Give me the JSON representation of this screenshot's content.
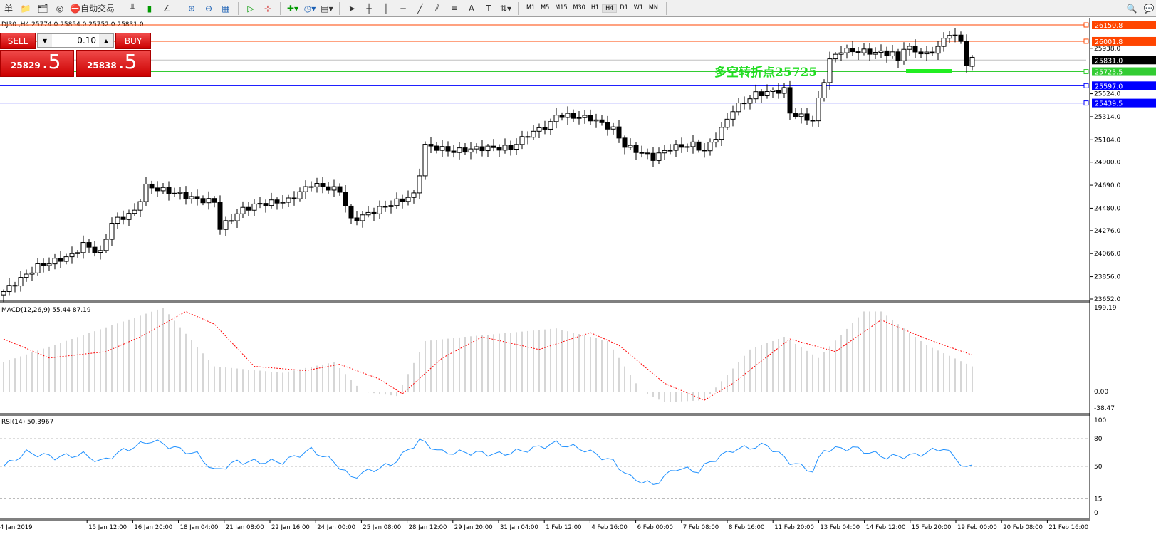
{
  "toolbar": {
    "auto_trade_label": "自动交易",
    "left_cut_label": "单",
    "timeframes": [
      "M1",
      "M5",
      "M15",
      "M30",
      "H1",
      "H4",
      "D1",
      "W1",
      "MN"
    ],
    "active_timeframe": "H4"
  },
  "chart_header": "DJ30 ,H4  25774.0 25854.0 25752.0 25831.0",
  "trade_panel": {
    "sell_label": "SELL",
    "buy_label": "BUY",
    "lot": "0.10",
    "sell_big": "25829",
    "sell_small": ".5",
    "buy_big": "25838",
    "buy_small": ".5",
    "color": "#d42020"
  },
  "annotation": {
    "text": "多空转折点25725",
    "color": "#22dd22"
  },
  "chart_data": [
    {
      "type": "candlestick",
      "symbol": "DJ30",
      "timeframe": "H4",
      "ylim": [
        23652.0,
        26150.8
      ],
      "price_ticks": [
        25938.0,
        25524.0,
        25314.0,
        25104.0,
        24900.0,
        24690.0,
        24480.0,
        24276.0,
        24066.0,
        23856.0,
        23652.0
      ],
      "last_ohlc": {
        "open": 25774.0,
        "high": 25854.0,
        "low": 25752.0,
        "close": 25831.0
      },
      "close_path_by_bar": [
        [
          0,
          23720
        ],
        [
          6,
          23950
        ],
        [
          12,
          24050
        ],
        [
          14,
          24150
        ],
        [
          17,
          24070
        ],
        [
          19,
          24350
        ],
        [
          23,
          24450
        ],
        [
          25,
          24680
        ],
        [
          30,
          24620
        ],
        [
          34,
          24560
        ],
        [
          37,
          24540
        ],
        [
          38,
          24300
        ],
        [
          42,
          24470
        ],
        [
          45,
          24520
        ],
        [
          50,
          24550
        ],
        [
          54,
          24700
        ],
        [
          59,
          24640
        ],
        [
          61,
          24370
        ],
        [
          64,
          24430
        ],
        [
          68,
          24520
        ],
        [
          72,
          24600
        ],
        [
          73,
          24800
        ],
        [
          74,
          25050
        ],
        [
          79,
          25000
        ],
        [
          84,
          25030
        ],
        [
          89,
          25030
        ],
        [
          92,
          25150
        ],
        [
          96,
          25250
        ],
        [
          97,
          25330
        ],
        [
          103,
          25300
        ],
        [
          107,
          25200
        ],
        [
          109,
          25050
        ],
        [
          114,
          24940
        ],
        [
          117,
          25030
        ],
        [
          121,
          25060
        ],
        [
          123,
          25000
        ],
        [
          126,
          25200
        ],
        [
          128,
          25380
        ],
        [
          132,
          25520
        ],
        [
          137,
          25560
        ],
        [
          138,
          25350
        ],
        [
          142,
          25280
        ],
        [
          144,
          25650
        ],
        [
          145,
          25830
        ],
        [
          147,
          25920
        ],
        [
          156,
          25890
        ],
        [
          157,
          25820
        ],
        [
          158,
          25950
        ],
        [
          162,
          25880
        ],
        [
          164,
          25950
        ],
        [
          166,
          26080
        ],
        [
          168,
          26000
        ],
        [
          169,
          25800
        ],
        [
          170,
          25831
        ]
      ],
      "levels": [
        {
          "price": "26150.8",
          "color": "#ff4500"
        },
        {
          "price": "26001.8",
          "color": "#ff4500"
        },
        {
          "price": "25831.0",
          "color": "#000000",
          "line": "#c0c0c0"
        },
        {
          "price": "25725.5",
          "color": "#33cc33"
        },
        {
          "price": "25597.0",
          "color": "#0000ff"
        },
        {
          "price": "25439.5",
          "color": "#0000ff"
        }
      ]
    },
    {
      "type": "bar+line",
      "title": "MACD(12,26,9) 55.44 87.19",
      "ylim": [
        -38.47,
        199.19
      ],
      "ticks": [
        "199.19",
        "0.00",
        "-38.47"
      ],
      "histogram_by_bar": [
        [
          0,
          70
        ],
        [
          24,
          180
        ],
        [
          28,
          199
        ],
        [
          37,
          60
        ],
        [
          49,
          45
        ],
        [
          58,
          70
        ],
        [
          63,
          0
        ],
        [
          69,
          -10
        ],
        [
          74,
          120
        ],
        [
          81,
          130
        ],
        [
          97,
          150
        ],
        [
          106,
          120
        ],
        [
          112,
          0
        ],
        [
          116,
          -25
        ],
        [
          123,
          -20
        ],
        [
          131,
          100
        ],
        [
          137,
          130
        ],
        [
          143,
          80
        ],
        [
          151,
          190
        ],
        [
          154,
          190
        ],
        [
          162,
          110
        ],
        [
          170,
          60
        ]
      ],
      "signal_by_bar": [
        [
          0,
          125
        ],
        [
          8,
          80
        ],
        [
          18,
          95
        ],
        [
          24,
          130
        ],
        [
          32,
          190
        ],
        [
          37,
          160
        ],
        [
          44,
          60
        ],
        [
          53,
          50
        ],
        [
          59,
          65
        ],
        [
          66,
          30
        ],
        [
          70,
          -5
        ],
        [
          77,
          80
        ],
        [
          84,
          130
        ],
        [
          94,
          100
        ],
        [
          103,
          140
        ],
        [
          108,
          110
        ],
        [
          116,
          20
        ],
        [
          123,
          -20
        ],
        [
          128,
          20
        ],
        [
          138,
          125
        ],
        [
          146,
          95
        ],
        [
          154,
          170
        ],
        [
          162,
          125
        ],
        [
          170,
          87
        ]
      ],
      "histogram_color": "#c0c0c0",
      "signal_color": "#ff0000"
    },
    {
      "type": "line",
      "title": "RSI(14) 50.3967",
      "ylim": [
        0,
        100
      ],
      "ticks": [
        "100",
        "80",
        "50",
        "15",
        "0"
      ],
      "levels": [
        80,
        50,
        15
      ],
      "color": "#1e90ff",
      "rsi_by_bar": [
        [
          0,
          50
        ],
        [
          4,
          65
        ],
        [
          9,
          60
        ],
        [
          14,
          63
        ],
        [
          17,
          55
        ],
        [
          21,
          67
        ],
        [
          26,
          78
        ],
        [
          31,
          68
        ],
        [
          34,
          63
        ],
        [
          37,
          45
        ],
        [
          41,
          55
        ],
        [
          44,
          55
        ],
        [
          49,
          55
        ],
        [
          54,
          68
        ],
        [
          58,
          55
        ],
        [
          61,
          38
        ],
        [
          64,
          45
        ],
        [
          68,
          52
        ],
        [
          73,
          78
        ],
        [
          77,
          65
        ],
        [
          82,
          65
        ],
        [
          87,
          63
        ],
        [
          92,
          68
        ],
        [
          97,
          75
        ],
        [
          102,
          68
        ],
        [
          107,
          55
        ],
        [
          110,
          38
        ],
        [
          114,
          30
        ],
        [
          118,
          48
        ],
        [
          122,
          45
        ],
        [
          124,
          55
        ],
        [
          128,
          68
        ],
        [
          134,
          73
        ],
        [
          138,
          55
        ],
        [
          142,
          45
        ],
        [
          144,
          68
        ],
        [
          149,
          70
        ],
        [
          155,
          60
        ],
        [
          160,
          62
        ],
        [
          165,
          70
        ],
        [
          169,
          48
        ],
        [
          170,
          50
        ]
      ]
    }
  ],
  "time_axis": [
    "4 Jan 2019",
    "15 Jan 12:00",
    "16 Jan 20:00",
    "18 Jan 04:00",
    "21 Jan 08:00",
    "22 Jan 16:00",
    "24 Jan 00:00",
    "25 Jan 08:00",
    "28 Jan 12:00",
    "29 Jan 20:00",
    "31 Jan 04:00",
    "1 Feb 12:00",
    "4 Feb 16:00",
    "6 Feb 00:00",
    "7 Feb 08:00",
    "8 Feb 16:00",
    "11 Feb 20:00",
    "13 Feb 04:00",
    "14 Feb 12:00",
    "15 Feb 20:00",
    "19 Feb 00:00",
    "20 Feb 08:00",
    "21 Feb 16:00"
  ]
}
